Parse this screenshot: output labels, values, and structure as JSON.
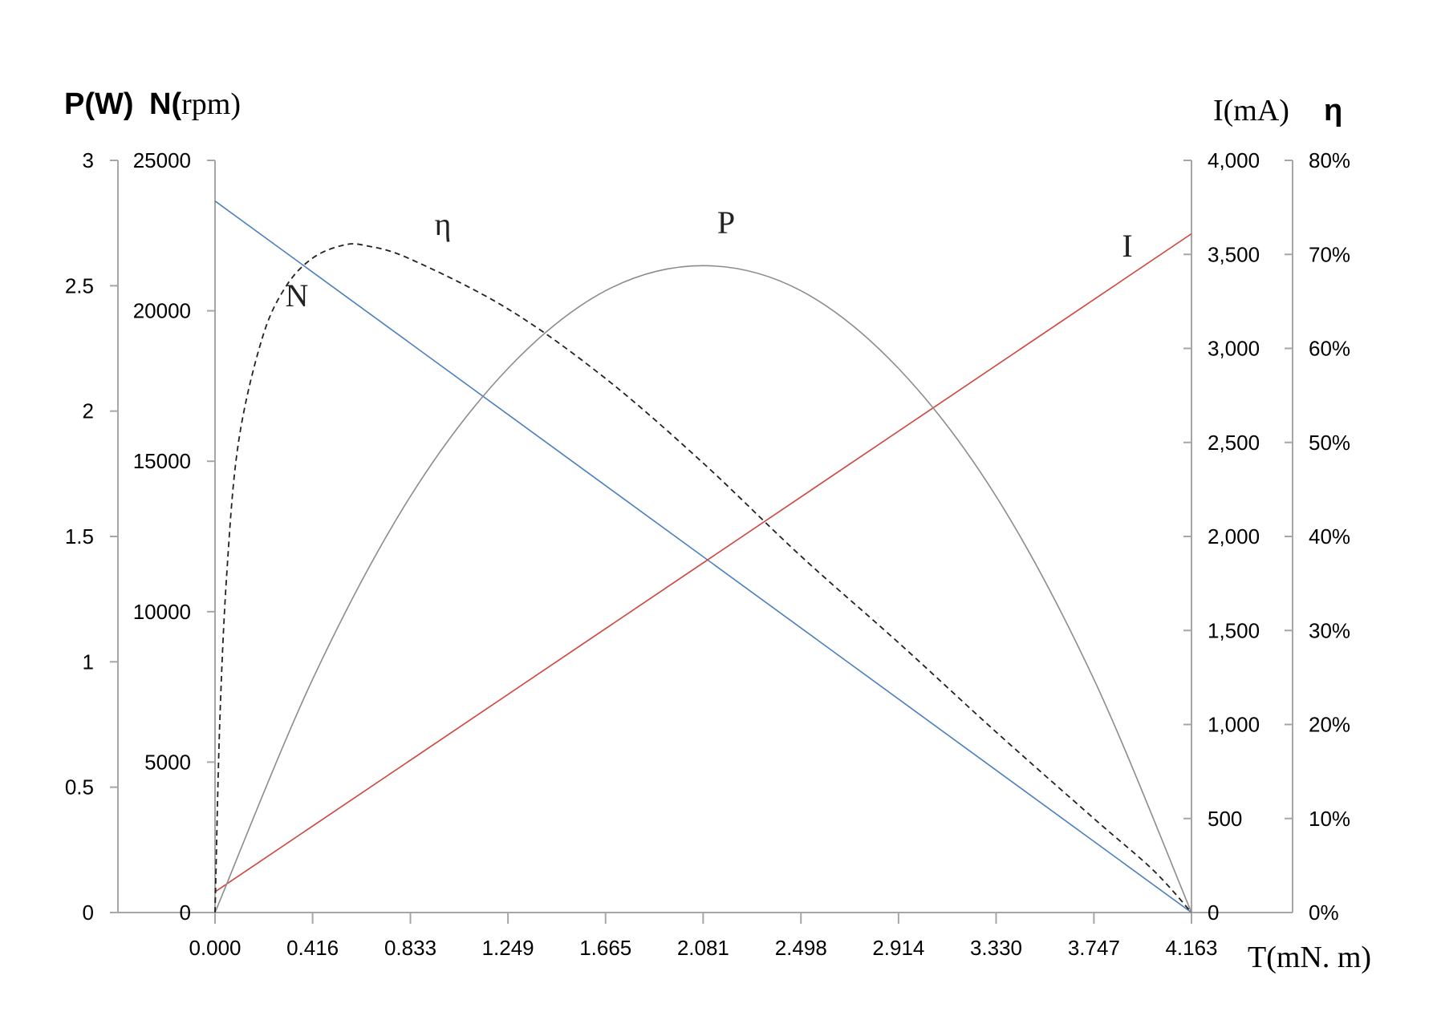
{
  "chart_data": {
    "type": "line",
    "x_axis": {
      "label": "T(mN. m)",
      "range": [
        0,
        4.163
      ],
      "ticks": [
        0,
        0.416,
        0.833,
        1.249,
        1.665,
        2.081,
        2.498,
        2.914,
        3.33,
        3.747,
        4.163
      ],
      "tick_labels": [
        "0.000",
        "0.416",
        "0.833",
        "1.249",
        "1.665",
        "2.081",
        "2.498",
        "2.914",
        "3.330",
        "3.747",
        "4.163"
      ]
    },
    "y_axes": {
      "power": {
        "label": "P(W)",
        "range": [
          0,
          3
        ],
        "ticks": [
          0,
          0.5,
          1,
          1.5,
          2,
          2.5,
          3
        ],
        "tick_labels": [
          "0",
          "0.5",
          "1",
          "1.5",
          "2",
          "2.5",
          "3"
        ]
      },
      "speed": {
        "label_bold": "N(",
        "label_serif": "rpm)",
        "range": [
          0,
          25000
        ],
        "ticks": [
          0,
          5000,
          10000,
          15000,
          20000,
          25000
        ],
        "tick_labels": [
          "0",
          "5000",
          "10000",
          "15000",
          "20000",
          "25000"
        ]
      },
      "current": {
        "label": "I(mA)",
        "range": [
          0,
          4000
        ],
        "ticks": [
          0,
          500,
          1000,
          1500,
          2000,
          2500,
          3000,
          3500,
          4000
        ],
        "tick_labels": [
          "0",
          "500",
          "1,000",
          "1,500",
          "2,000",
          "2,500",
          "3,000",
          "3,500",
          "4,000"
        ]
      },
      "efficiency": {
        "label": "η",
        "range": [
          0,
          80
        ],
        "ticks": [
          0,
          10,
          20,
          30,
          40,
          50,
          60,
          70,
          80
        ],
        "tick_labels": [
          "0%",
          "10%",
          "20%",
          "30%",
          "40%",
          "50%",
          "60%",
          "70%",
          "80%"
        ]
      }
    },
    "series": [
      {
        "name": "N",
        "axis": "speed",
        "color": "#4a7ebf",
        "style": "solid",
        "x": [
          0,
          4.163
        ],
        "y": [
          23650,
          0
        ]
      },
      {
        "name": "I",
        "axis": "current",
        "color": "#d0443c",
        "style": "solid",
        "x": [
          0,
          4.163
        ],
        "y": [
          110,
          3610
        ]
      },
      {
        "name": "P",
        "axis": "power",
        "color": "#8c8c8c",
        "style": "solid",
        "x": [
          0,
          0.416,
          0.833,
          1.249,
          1.665,
          2.081,
          2.498,
          2.914,
          3.33,
          3.747,
          4.163
        ],
        "y": [
          0,
          0.93,
          1.66,
          2.17,
          2.48,
          2.58,
          2.48,
          2.17,
          1.66,
          0.93,
          0
        ]
      },
      {
        "name": "η",
        "axis": "efficiency",
        "color": "#222222",
        "style": "dashed",
        "x": [
          0,
          0.02,
          0.05,
          0.1,
          0.2,
          0.3,
          0.416,
          0.55,
          0.65,
          0.833,
          1.249,
          1.665,
          2.081,
          2.498,
          2.914,
          3.33,
          3.747,
          4.0,
          4.163
        ],
        "y": [
          0,
          20,
          36,
          50,
          61,
          66.5,
          69.6,
          71,
          70.9,
          69.5,
          64.2,
          56.8,
          47.8,
          37.9,
          28.7,
          19.2,
          10.0,
          4.5,
          0
        ]
      }
    ],
    "grid": false,
    "legend": "none"
  }
}
